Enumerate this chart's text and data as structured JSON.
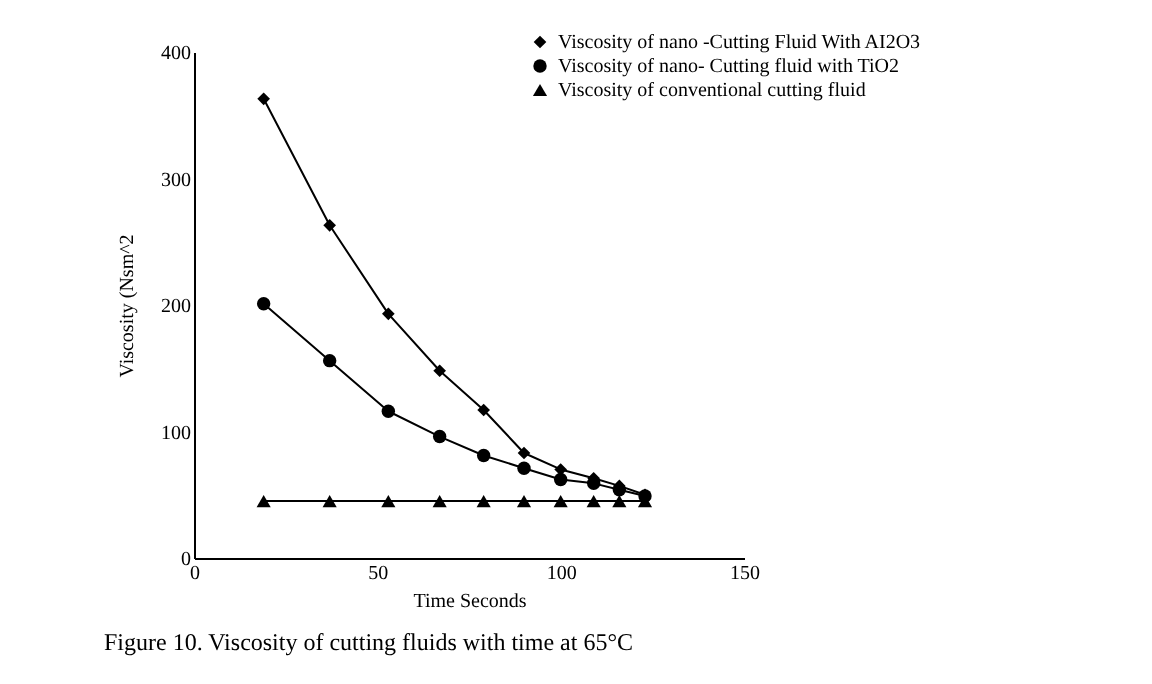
{
  "chart_data": {
    "type": "line",
    "xlabel": "Time Seconds",
    "ylabel": "Viscosity (Nsm^2",
    "annotations": [
      "Figure 10. Viscosity of cutting fluids with time at 65°C"
    ],
    "x": [
      19,
      37,
      53,
      67,
      79,
      90,
      100,
      109,
      116,
      123
    ],
    "xlim": [
      0,
      150
    ],
    "xticks": [
      0,
      50,
      100,
      150
    ],
    "ylim": [
      0,
      400
    ],
    "yticks": [
      0,
      100,
      200,
      300,
      400
    ],
    "grid": false,
    "legend": "top right",
    "series": [
      {
        "name": "Viscosity of nano -Cutting Fluid With AI2O3",
        "color": "#000000",
        "marker": "diamond",
        "values": [
          363,
          263,
          193,
          148,
          117,
          83,
          70,
          63,
          57,
          50
        ]
      },
      {
        "name": "Viscosity of nano- Cutting fluid with TiO2",
        "color": "#000000",
        "marker": "circle",
        "values": [
          201,
          156,
          116,
          96,
          81,
          71,
          62,
          59,
          54,
          49
        ]
      },
      {
        "name": "Viscosity of conventional cutting fluid",
        "color": "#000000",
        "marker": "triangle",
        "values": [
          45,
          45,
          45,
          45,
          45,
          45,
          45,
          45,
          45,
          45
        ]
      }
    ]
  }
}
